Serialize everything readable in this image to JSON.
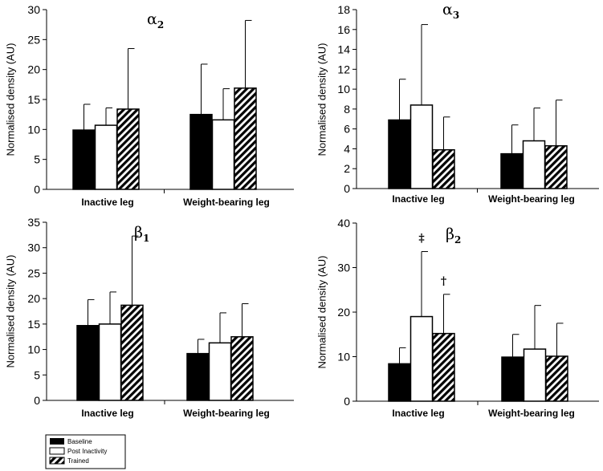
{
  "chart_data": [
    {
      "type": "bar",
      "title": "α",
      "title_sub": "2",
      "ylabel": "Normalised density (AU)",
      "ylim": [
        0,
        30
      ],
      "yticks": [
        0,
        5,
        10,
        15,
        20,
        25,
        30
      ],
      "categories": [
        "Inactive leg",
        "Weight-bearing leg"
      ],
      "series": [
        {
          "name": "Baseline",
          "values": [
            9.9,
            12.5
          ],
          "errors": [
            4.3,
            8.4
          ]
        },
        {
          "name": "Post Inactivity",
          "values": [
            10.7,
            11.6
          ],
          "errors": [
            2.9,
            5.2
          ]
        },
        {
          "name": "Trained",
          "values": [
            13.4,
            16.9
          ],
          "errors": [
            10.1,
            11.3
          ]
        }
      ],
      "annotations": []
    },
    {
      "type": "bar",
      "title": "α",
      "title_sub": "3",
      "ylabel": "Normalised density (AU)",
      "ylim": [
        0,
        18
      ],
      "yticks": [
        0,
        2,
        4,
        6,
        8,
        10,
        12,
        14,
        16,
        18
      ],
      "categories": [
        "Inactive leg",
        "Weight-bearing leg"
      ],
      "series": [
        {
          "name": "Baseline",
          "values": [
            6.9,
            3.5
          ],
          "errors": [
            4.1,
            2.9
          ]
        },
        {
          "name": "Post Inactivity",
          "values": [
            8.4,
            4.8
          ],
          "errors": [
            8.1,
            3.3
          ]
        },
        {
          "name": "Trained",
          "values": [
            3.9,
            4.3
          ],
          "errors": [
            3.3,
            4.6
          ]
        }
      ],
      "annotations": []
    },
    {
      "type": "bar",
      "title": "β",
      "title_sub": "1",
      "ylabel": "Normalised density (AU)",
      "ylim": [
        0,
        35
      ],
      "yticks": [
        0,
        5,
        10,
        15,
        20,
        25,
        30,
        35
      ],
      "categories": [
        "Inactive leg",
        "Weight-bearing leg"
      ],
      "series": [
        {
          "name": "Baseline",
          "values": [
            14.7,
            9.2
          ],
          "errors": [
            5.1,
            2.8
          ]
        },
        {
          "name": "Post Inactivity",
          "values": [
            15.0,
            11.3
          ],
          "errors": [
            6.3,
            5.9
          ]
        },
        {
          "name": "Trained",
          "values": [
            18.7,
            12.5
          ],
          "errors": [
            13.6,
            6.5
          ]
        }
      ],
      "annotations": []
    },
    {
      "type": "bar",
      "title": "β",
      "title_sub": "2",
      "ylabel": "Normalised density (AU)",
      "ylim": [
        0,
        40
      ],
      "yticks": [
        0,
        10,
        20,
        30,
        40
      ],
      "categories": [
        "Inactive leg",
        "Weight-bearing leg"
      ],
      "series": [
        {
          "name": "Baseline",
          "values": [
            8.4,
            9.9
          ],
          "errors": [
            3.6,
            5.1
          ]
        },
        {
          "name": "Post Inactivity",
          "values": [
            19.0,
            11.7
          ],
          "errors": [
            14.6,
            9.8
          ]
        },
        {
          "name": "Trained",
          "values": [
            15.2,
            10.1
          ],
          "errors": [
            8.8,
            7.4
          ]
        }
      ],
      "annotations": [
        {
          "text": "‡",
          "category": 0,
          "series": 1
        },
        {
          "text": "†",
          "category": 0,
          "series": 2
        }
      ]
    }
  ],
  "legend": {
    "entries": [
      {
        "label": "Baseline",
        "style": "solid-black"
      },
      {
        "label": "Post Inactivity",
        "style": "white"
      },
      {
        "label": "Trained",
        "style": "hatched"
      }
    ]
  }
}
